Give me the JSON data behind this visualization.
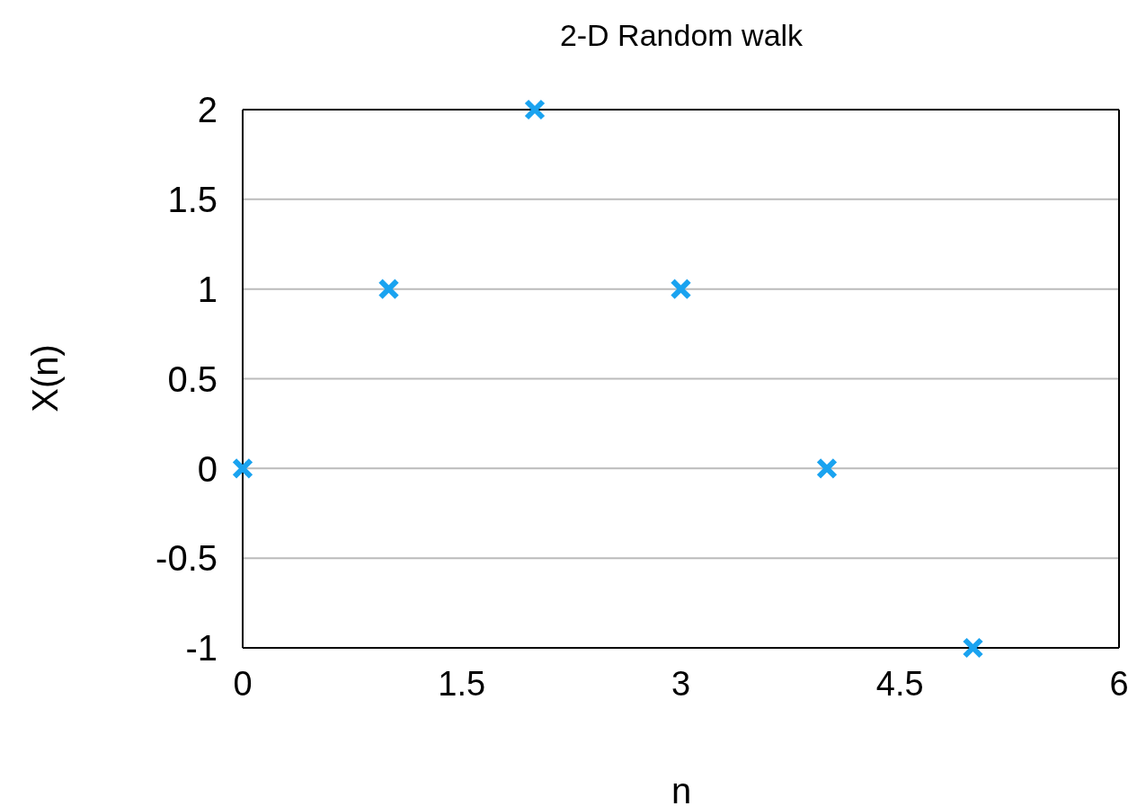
{
  "chart_data": {
    "type": "scatter",
    "title": "2-D Random walk",
    "xlabel": "n",
    "ylabel": "X(n)",
    "x": [
      0,
      1,
      2,
      3,
      4,
      5
    ],
    "series": [
      {
        "color": "#1aa3f0",
        "values": [
          0,
          1,
          2,
          1,
          0,
          -1
        ]
      }
    ],
    "xlim": [
      0,
      6
    ],
    "xticks": [
      0,
      1.5,
      3,
      4.5,
      6
    ],
    "ylim": [
      -1,
      2
    ],
    "yticks": [
      -1,
      -0.5,
      0,
      0.5,
      1,
      1.5,
      2
    ],
    "grid": "y",
    "marker": "cross",
    "legend": false
  }
}
